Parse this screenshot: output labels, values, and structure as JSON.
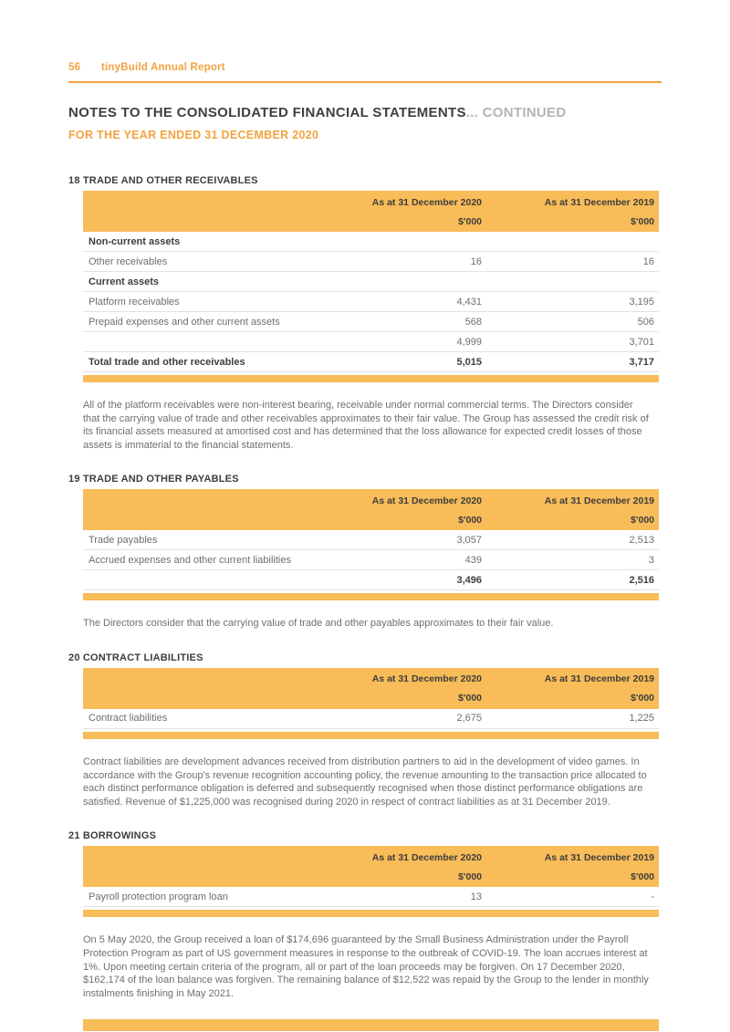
{
  "colors": {
    "accent": "#F8BC58",
    "accent_text": "#F2A340"
  },
  "page": {
    "number": "56",
    "brand": "tinyBuild Annual Report",
    "title_main": "NOTES TO THE CONSOLIDATED FINANCIAL STATEMENTS",
    "title_continued": "... CONTINUED",
    "subtitle": "FOR THE YEAR ENDED 31 DECEMBER 2020"
  },
  "table_header": {
    "col2020": "As at 31 December 2020",
    "col2019": "As at 31 December 2019",
    "unit": "$'000"
  },
  "sections": [
    {
      "heading": "18 TRADE AND OTHER RECEIVABLES",
      "table": {
        "rows": [
          {
            "label": "Non-current assets",
            "v2020": "",
            "v2019": ""
          },
          {
            "label": "Other receivables",
            "v2020": "16",
            "v2019": "16"
          },
          {
            "label": "Current assets",
            "v2020": "",
            "v2019": ""
          },
          {
            "label": "Platform receivables",
            "v2020": "4,431",
            "v2019": "3,195"
          },
          {
            "label": "Prepaid expenses and other current assets",
            "v2020": "568",
            "v2019": "506"
          },
          {
            "label": "",
            "v2020": "4,999",
            "v2019": "3,701"
          },
          {
            "label": "Total trade and other receivables",
            "v2020": "5,015",
            "v2019": "3,717"
          }
        ]
      },
      "note": "All of the platform receivables were non-interest bearing, receivable under normal commercial terms. The Directors consider that the carrying value of trade and other receivables approximates to their fair value. The Group has assessed the credit risk of its financial assets measured at amortised cost and has determined that the loss allowance for expected credit losses of those assets is immaterial to the financial statements."
    },
    {
      "heading": "19 TRADE AND OTHER PAYABLES",
      "table": {
        "rows": [
          {
            "label": "Trade payables",
            "v2020": "3,057",
            "v2019": "2,513"
          },
          {
            "label": "Accrued expenses and other current liabilities",
            "v2020": "439",
            "v2019": "3"
          },
          {
            "label": "",
            "v2020": "3,496",
            "v2019": "2,516"
          }
        ]
      },
      "note": "The Directors consider that the carrying value of trade and other payables approximates to their fair value."
    },
    {
      "heading": "20 CONTRACT LIABILITIES",
      "table": {
        "rows": [
          {
            "label": "Contract liabilities",
            "v2020": "2,675",
            "v2019": "1,225"
          }
        ]
      },
      "note": "Contract liabilities are development advances received from distribution partners to aid in the development of video games. In accordance with the Group's revenue recognition accounting policy, the revenue amounting to the transaction price allocated to each distinct performance obligation is deferred and subsequently recognised when those distinct performance obligations are satisfied. Revenue of $1,225,000 was recognised during 2020 in respect of contract liabilities as at 31 December 2019."
    },
    {
      "heading": "21 BORROWINGS",
      "table": {
        "rows": [
          {
            "label": "Payroll protection program loan",
            "v2020": "13",
            "v2019": "-"
          }
        ]
      },
      "note": "On 5 May 2020, the Group received a loan of $174,696 guaranteed by the Small Business Administration under the Payroll Protection Program as part of US government measures in response to the outbreak of COVID-19. The loan accrues interest at 1%. Upon meeting certain criteria of the program, all or part of the loan proceeds may be forgiven. On 17 December 2020, $162,174 of the loan balance was forgiven. The remaining balance of $12,522 was repaid by the Group to the lender in monthly instalments finishing in May 2021."
    }
  ]
}
